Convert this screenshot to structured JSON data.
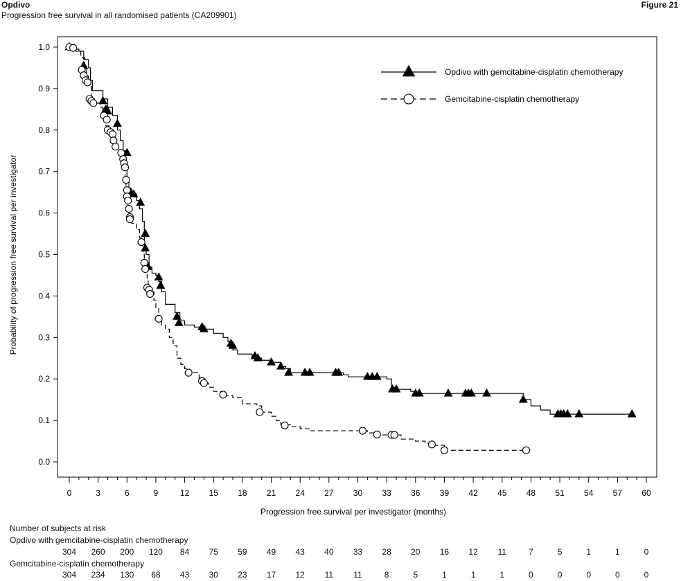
{
  "header": {
    "document_label": "Opdivo",
    "figure_label": "Figure 21",
    "subtitle": "Progression free survival in all randomised patients (CA209901)"
  },
  "chart_data": {
    "type": "line",
    "title": "",
    "xlabel": "Progression free survival per investigator (months)",
    "ylabel": "Probability of progression free survival per investigator",
    "xlim": [
      0,
      60
    ],
    "ylim": [
      0.0,
      1.0
    ],
    "x_ticks": [
      0,
      3,
      6,
      9,
      12,
      15,
      18,
      21,
      24,
      27,
      30,
      33,
      36,
      39,
      42,
      45,
      48,
      51,
      54,
      57,
      60
    ],
    "y_ticks": [
      0.0,
      0.1,
      0.2,
      0.3,
      0.4,
      0.5,
      0.6,
      0.7,
      0.8,
      0.9,
      1.0
    ],
    "y_tick_labels": [
      "0.0",
      "0.1",
      "0.2",
      "0.3",
      "0.4",
      "0.5",
      "0.6",
      "0.7",
      "0.8",
      "0.9",
      "1.0"
    ],
    "grid": false,
    "legend_position": "top-right",
    "series": [
      {
        "name": "Opdivo with gemcitabine-cisplatin chemotherapy",
        "line_style": "solid",
        "marker": "filled-triangle",
        "color": "#000000",
        "steps": [
          [
            0,
            1.0
          ],
          [
            0.5,
            0.995
          ],
          [
            1,
            0.99
          ],
          [
            1.5,
            0.97
          ],
          [
            2,
            0.95
          ],
          [
            2.2,
            0.92
          ],
          [
            2.4,
            0.895
          ],
          [
            3.5,
            0.875
          ],
          [
            4,
            0.855
          ],
          [
            4.5,
            0.835
          ],
          [
            5,
            0.8
          ],
          [
            5.3,
            0.775
          ],
          [
            5.6,
            0.75
          ],
          [
            5.8,
            0.72
          ],
          [
            6,
            0.68
          ],
          [
            6.2,
            0.655
          ],
          [
            6.5,
            0.645
          ],
          [
            7,
            0.63
          ],
          [
            7.3,
            0.61
          ],
          [
            7.6,
            0.58
          ],
          [
            7.8,
            0.52
          ],
          [
            8,
            0.5
          ],
          [
            8.3,
            0.47
          ],
          [
            8.6,
            0.455
          ],
          [
            9,
            0.45
          ],
          [
            9.3,
            0.435
          ],
          [
            9.6,
            0.41
          ],
          [
            10,
            0.38
          ],
          [
            11,
            0.36
          ],
          [
            11.5,
            0.34
          ],
          [
            12,
            0.33
          ],
          [
            13,
            0.325
          ],
          [
            14,
            0.32
          ],
          [
            15,
            0.31
          ],
          [
            16,
            0.3
          ],
          [
            16.5,
            0.29
          ],
          [
            17,
            0.27
          ],
          [
            17.5,
            0.26
          ],
          [
            19,
            0.255
          ],
          [
            19.5,
            0.25
          ],
          [
            20,
            0.245
          ],
          [
            21,
            0.24
          ],
          [
            22,
            0.23
          ],
          [
            22.5,
            0.225
          ],
          [
            23,
            0.215
          ],
          [
            28,
            0.215
          ],
          [
            28.5,
            0.21
          ],
          [
            29,
            0.205
          ],
          [
            33,
            0.2
          ],
          [
            33.5,
            0.18
          ],
          [
            34,
            0.175
          ],
          [
            35.5,
            0.17
          ],
          [
            36,
            0.165
          ],
          [
            47,
            0.165
          ],
          [
            47.2,
            0.15
          ],
          [
            48,
            0.135
          ],
          [
            49,
            0.125
          ],
          [
            50,
            0.115
          ],
          [
            58.5,
            0.115
          ]
        ],
        "censored": [
          [
            0,
            1.0
          ],
          [
            1.5,
            0.955
          ],
          [
            3.5,
            0.87
          ],
          [
            3.8,
            0.85
          ],
          [
            4,
            0.845
          ],
          [
            5,
            0.815
          ],
          [
            6,
            0.745
          ],
          [
            6.4,
            0.65
          ],
          [
            6.7,
            0.645
          ],
          [
            7.4,
            0.625
          ],
          [
            7.9,
            0.55
          ],
          [
            7.9,
            0.515
          ],
          [
            8.2,
            0.47
          ],
          [
            9.3,
            0.445
          ],
          [
            9.5,
            0.425
          ],
          [
            11.2,
            0.35
          ],
          [
            11.4,
            0.335
          ],
          [
            13.8,
            0.325
          ],
          [
            14,
            0.32
          ],
          [
            16.8,
            0.285
          ],
          [
            17,
            0.28
          ],
          [
            19.3,
            0.255
          ],
          [
            19.6,
            0.25
          ],
          [
            21,
            0.24
          ],
          [
            22,
            0.23
          ],
          [
            22.8,
            0.215
          ],
          [
            24.5,
            0.215
          ],
          [
            25,
            0.215
          ],
          [
            27.7,
            0.215
          ],
          [
            28,
            0.215
          ],
          [
            31,
            0.205
          ],
          [
            31.5,
            0.205
          ],
          [
            32,
            0.205
          ],
          [
            33.6,
            0.175
          ],
          [
            34,
            0.175
          ],
          [
            36,
            0.165
          ],
          [
            36.4,
            0.165
          ],
          [
            39.4,
            0.165
          ],
          [
            41.2,
            0.165
          ],
          [
            41.5,
            0.165
          ],
          [
            41.8,
            0.165
          ],
          [
            43.4,
            0.165
          ],
          [
            47.2,
            0.15
          ],
          [
            50.8,
            0.115
          ],
          [
            51.1,
            0.115
          ],
          [
            51.4,
            0.115
          ],
          [
            51.8,
            0.115
          ],
          [
            53,
            0.115
          ],
          [
            58.5,
            0.115
          ]
        ]
      },
      {
        "name": "Gemcitabine-cisplatin chemotherapy",
        "line_style": "dashed",
        "marker": "open-circle",
        "color": "#000000",
        "steps": [
          [
            0,
            1.0
          ],
          [
            0.7,
            0.99
          ],
          [
            1.2,
            0.975
          ],
          [
            1.6,
            0.95
          ],
          [
            1.8,
            0.93
          ],
          [
            2,
            0.91
          ],
          [
            2.3,
            0.88
          ],
          [
            2.6,
            0.865
          ],
          [
            3.2,
            0.855
          ],
          [
            3.5,
            0.835
          ],
          [
            3.8,
            0.81
          ],
          [
            4.2,
            0.79
          ],
          [
            4.5,
            0.775
          ],
          [
            4.8,
            0.755
          ],
          [
            5.2,
            0.74
          ],
          [
            5.5,
            0.725
          ],
          [
            5.7,
            0.71
          ],
          [
            5.8,
            0.68
          ],
          [
            5.9,
            0.655
          ],
          [
            6,
            0.63
          ],
          [
            6.1,
            0.605
          ],
          [
            6.2,
            0.585
          ],
          [
            6.5,
            0.575
          ],
          [
            7,
            0.56
          ],
          [
            7.3,
            0.54
          ],
          [
            7.5,
            0.525
          ],
          [
            7.7,
            0.5
          ],
          [
            7.8,
            0.48
          ],
          [
            8,
            0.465
          ],
          [
            8.1,
            0.44
          ],
          [
            8.2,
            0.42
          ],
          [
            8.5,
            0.41
          ],
          [
            8.8,
            0.39
          ],
          [
            9,
            0.37
          ],
          [
            9.3,
            0.345
          ],
          [
            9.6,
            0.33
          ],
          [
            10,
            0.32
          ],
          [
            10.4,
            0.3
          ],
          [
            10.8,
            0.28
          ],
          [
            11.2,
            0.25
          ],
          [
            11.6,
            0.235
          ],
          [
            12,
            0.225
          ],
          [
            12.5,
            0.215
          ],
          [
            13.5,
            0.2
          ],
          [
            14,
            0.19
          ],
          [
            14.5,
            0.18
          ],
          [
            15,
            0.17
          ],
          [
            16,
            0.16
          ],
          [
            17,
            0.155
          ],
          [
            18,
            0.14
          ],
          [
            19.5,
            0.135
          ],
          [
            20,
            0.12
          ],
          [
            21,
            0.11
          ],
          [
            21.5,
            0.1
          ],
          [
            22,
            0.09
          ],
          [
            23,
            0.085
          ],
          [
            24,
            0.08
          ],
          [
            25,
            0.075
          ],
          [
            29,
            0.075
          ],
          [
            31,
            0.07
          ],
          [
            32,
            0.065
          ],
          [
            34,
            0.065
          ],
          [
            34.5,
            0.055
          ],
          [
            36,
            0.05
          ],
          [
            37,
            0.045
          ],
          [
            38,
            0.04
          ],
          [
            39,
            0.028
          ],
          [
            47.5,
            0.028
          ]
        ],
        "censored": [
          [
            0,
            1.0
          ],
          [
            0.4,
            0.998
          ],
          [
            1.3,
            0.945
          ],
          [
            1.5,
            0.932
          ],
          [
            1.7,
            0.92
          ],
          [
            1.9,
            0.915
          ],
          [
            2.1,
            0.875
          ],
          [
            2.3,
            0.87
          ],
          [
            2.5,
            0.865
          ],
          [
            3.6,
            0.835
          ],
          [
            3.9,
            0.825
          ],
          [
            4,
            0.8
          ],
          [
            4.3,
            0.795
          ],
          [
            4.5,
            0.79
          ],
          [
            4.6,
            0.775
          ],
          [
            4.8,
            0.76
          ],
          [
            5.4,
            0.745
          ],
          [
            5.6,
            0.73
          ],
          [
            5.7,
            0.72
          ],
          [
            5.8,
            0.71
          ],
          [
            5.9,
            0.68
          ],
          [
            6,
            0.655
          ],
          [
            6,
            0.64
          ],
          [
            6.1,
            0.63
          ],
          [
            6.2,
            0.61
          ],
          [
            6.3,
            0.59
          ],
          [
            6.3,
            0.585
          ],
          [
            7.5,
            0.53
          ],
          [
            7.8,
            0.48
          ],
          [
            7.9,
            0.465
          ],
          [
            8.1,
            0.42
          ],
          [
            8.3,
            0.415
          ],
          [
            8.4,
            0.405
          ],
          [
            9.3,
            0.345
          ],
          [
            12.4,
            0.215
          ],
          [
            13.8,
            0.195
          ],
          [
            14,
            0.19
          ],
          [
            16,
            0.162
          ],
          [
            19.8,
            0.12
          ],
          [
            22.4,
            0.088
          ],
          [
            30.5,
            0.075
          ],
          [
            32,
            0.066
          ],
          [
            33.5,
            0.065
          ],
          [
            33.8,
            0.065
          ],
          [
            37.7,
            0.042
          ],
          [
            39,
            0.028
          ],
          [
            47.5,
            0.028
          ]
        ]
      }
    ]
  },
  "risk_table": {
    "title": "Number of subjects at risk",
    "rows": [
      {
        "label": "Opdivo with gemcitabine-cisplatin chemotherapy",
        "values": [
          "304",
          "260",
          "200",
          "120",
          "84",
          "75",
          "59",
          "49",
          "43",
          "40",
          "33",
          "28",
          "20",
          "16",
          "12",
          "11",
          "7",
          "5",
          "1",
          "1",
          "0"
        ]
      },
      {
        "label": "Gemcitabine-cisplatin chemotherapy",
        "values": [
          "304",
          "234",
          "130",
          "68",
          "43",
          "30",
          "23",
          "17",
          "12",
          "11",
          "11",
          "8",
          "5",
          "1",
          "1",
          "1",
          "0",
          "0",
          "0",
          "0",
          "0"
        ]
      }
    ]
  }
}
